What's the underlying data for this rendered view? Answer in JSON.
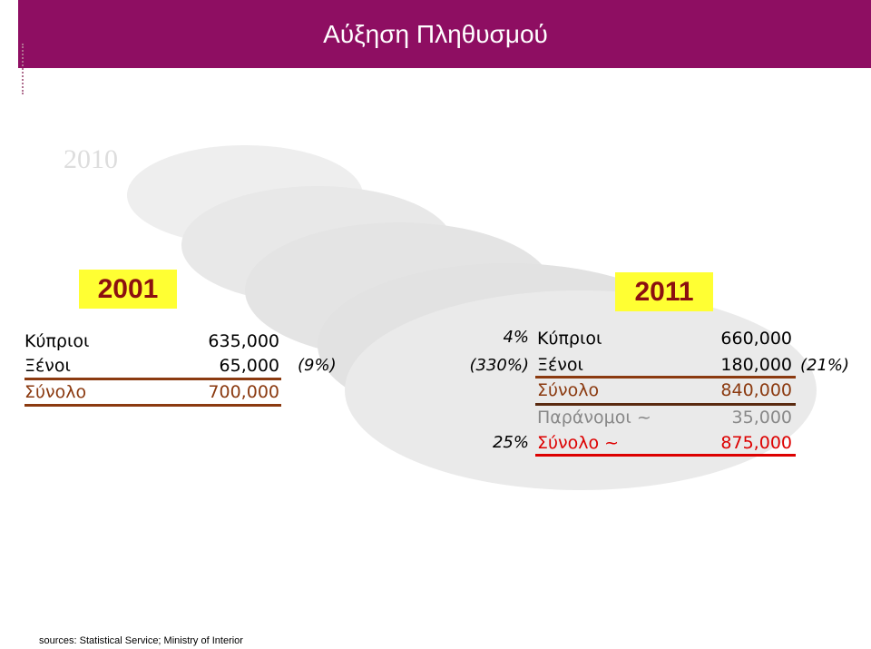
{
  "header": {
    "title": "Αύξηση Πληθυσμού"
  },
  "left": {
    "year": "2001",
    "rows": [
      {
        "label": "Κύπριοι",
        "value": "635,000"
      },
      {
        "label": "Ξένοι",
        "value": "65,000"
      },
      {
        "label": "Σύνολο",
        "value": "700,000"
      }
    ],
    "note": "(9%)"
  },
  "right": {
    "year": "2011",
    "rows": [
      {
        "label": "Κύπριοι",
        "value": "660,000"
      },
      {
        "label": "Ξένοι",
        "value": "180,000"
      },
      {
        "label": "Σύνολο",
        "value": "840,000"
      },
      {
        "label": "Παράνομοι ~",
        "value": "35,000"
      },
      {
        "label": "Σύνολο ~",
        "value": "875,000"
      }
    ],
    "note": "(21%)"
  },
  "growth": [
    "4%",
    "(330%)",
    "25%"
  ],
  "footer": "sources: Statistical Service; Ministry of Interior"
}
